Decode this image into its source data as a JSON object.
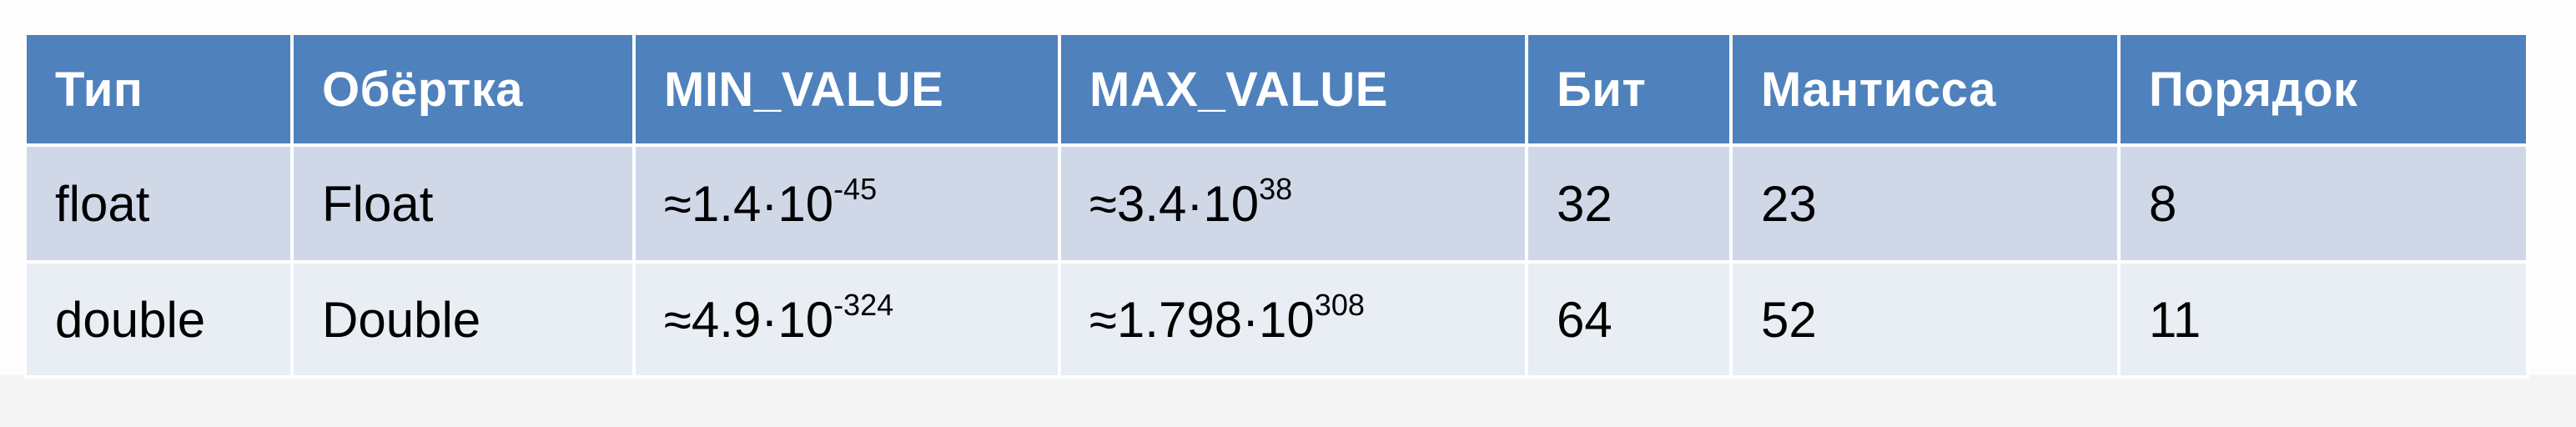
{
  "table": {
    "headers": [
      "Тип",
      "Обёртка",
      "MIN_VALUE",
      "MAX_VALUE",
      "Бит",
      "Мантисса",
      "Порядок"
    ],
    "rows": [
      {
        "type": "float",
        "wrapper": "Float",
        "min_value": {
          "base": "≈1.4·10",
          "exponent": "-45"
        },
        "max_value": {
          "base": "≈3.4·10",
          "exponent": "38"
        },
        "bits": "32",
        "mantissa": "23",
        "exponent_bits": "8"
      },
      {
        "type": "double",
        "wrapper": "Double",
        "min_value": {
          "base": "≈4.9·10",
          "exponent": "-324"
        },
        "max_value": {
          "base": "≈1.798·10",
          "exponent": "308"
        },
        "bits": "64",
        "mantissa": "52",
        "exponent_bits": "11"
      }
    ]
  },
  "colors": {
    "header_bg": "#4f81bd",
    "header_text": "#ffffff",
    "row_odd_bg": "#d0d8e8",
    "row_even_bg": "#e9edf4"
  }
}
